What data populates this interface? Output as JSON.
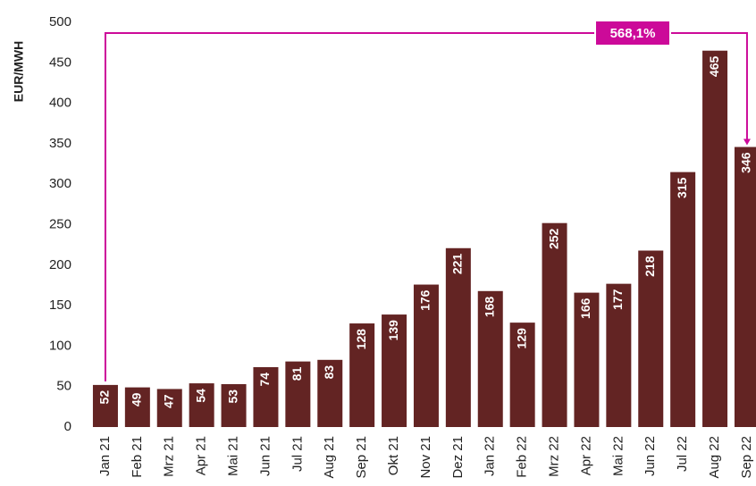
{
  "chart_data": {
    "type": "bar",
    "y_label": "EUR/MWH",
    "categories": [
      "Jan 21",
      "Feb 21",
      "Mrz 21",
      "Apr 21",
      "Mai 21",
      "Jun 21",
      "Jul 21",
      "Aug 21",
      "Sep 21",
      "Okt 21",
      "Nov 21",
      "Dez 21",
      "Jan 22",
      "Feb 22",
      "Mrz 22",
      "Apr 22",
      "Mai 22",
      "Jun 22",
      "Jul 22",
      "Aug 22",
      "Sep 22"
    ],
    "values": [
      52,
      49,
      47,
      54,
      53,
      74,
      81,
      83,
      128,
      139,
      176,
      221,
      168,
      129,
      252,
      166,
      177,
      218,
      315,
      465,
      346
    ],
    "color": "#632423",
    "ylim": [
      0,
      500
    ],
    "yticks": [
      0,
      50,
      100,
      150,
      200,
      250,
      300,
      350,
      400,
      450,
      500
    ],
    "annotation": "568,1%",
    "annotation_color": "#cc0a99"
  }
}
